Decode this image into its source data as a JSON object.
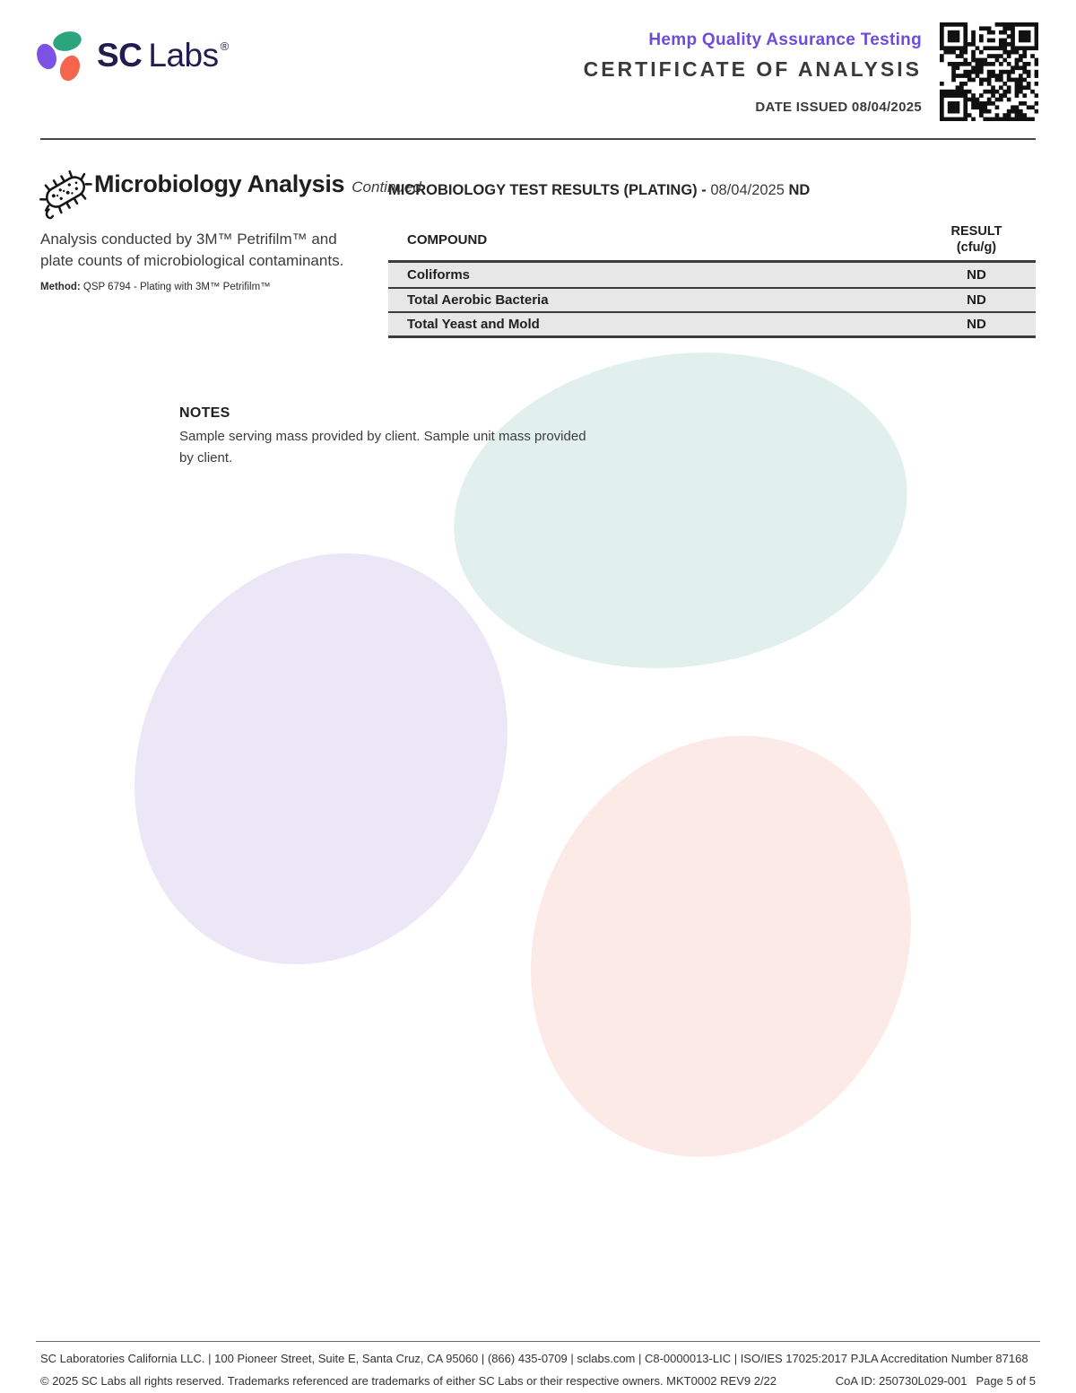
{
  "header": {
    "brand_bold": "SC",
    "brand_light": "Labs",
    "brand_reg": "®",
    "program_title": "Hemp Quality Assurance Testing",
    "document_title": "CERTIFICATE OF ANALYSIS",
    "date_issued": "DATE ISSUED 08/04/2025"
  },
  "section": {
    "title": "Microbiology Analysis",
    "continued": "Continued",
    "description": "Analysis conducted by 3M™ Petrifilm™ and plate counts of microbiological contaminants.",
    "method_label": "Method:",
    "method_value": " QSP 6794 - Plating with 3M™ Petrifilm™"
  },
  "results": {
    "title_main": "MICROBIOLOGY TEST RESULTS (PLATING) - ",
    "title_date": "08/04/2025",
    "title_overall": " ND",
    "table": {
      "col_compound": "COMPOUND",
      "col_result_line1": "RESULT",
      "col_result_line2": "(cfu/g)",
      "rows": [
        {
          "compound": "Coliforms",
          "result": "ND"
        },
        {
          "compound": "Total Aerobic Bacteria",
          "result": "ND"
        },
        {
          "compound": "Total Yeast and Mold",
          "result": "ND"
        }
      ]
    }
  },
  "notes": {
    "title": "NOTES",
    "body": "Sample serving mass provided by client. Sample unit mass provided by client."
  },
  "footer": {
    "line1": "SC Laboratories California LLC. | 100 Pioneer Street, Suite E, Santa Cruz, CA 95060 | (866) 435-0709 | sclabs.com | C8-0000013-LIC | ISO/IES 17025:2017 PJLA Accreditation Number 87168",
    "line2_left": "© 2025 SC Labs all rights reserved. Trademarks referenced are trademarks of either SC Labs or their respective owners. MKT0002 REV9 2/22",
    "coa_id": "CoA ID: 250730L029-001",
    "page": "Page 5 of 5"
  },
  "colors": {
    "brand_purple": "#6f4bdb",
    "brand_navy": "#211d4e",
    "logo_green": "#2ba57e",
    "logo_coral": "#f4654e",
    "table_row_gray": "#e7e7e7",
    "blob_teal": "#e2f0ed",
    "blob_lavender": "#ece7f7",
    "blob_pink": "#fceae7"
  }
}
